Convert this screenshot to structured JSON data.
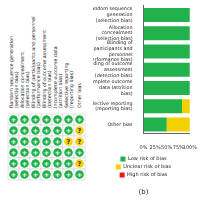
{
  "chart_data": {
    "type": "bar",
    "orientation": "horizontal",
    "stacked": true,
    "subtitle": "(b)",
    "categories": [
      "Random sequence generation (selection bias)",
      "Allocation concealment (selection bias)",
      "Blinding of participants and personnel (performance bias)",
      "Blinding of outcome assessment (detection bias)",
      "Incomplete outcome data (attrition bias)",
      "Selective reporting (reporting bias)",
      "Other bias"
    ],
    "series": [
      {
        "name": "Low risk of bias",
        "color": "#22b14c",
        "values": [
          100,
          100,
          100,
          100,
          100,
          83,
          50
        ]
      },
      {
        "name": "Unclear risk of bias",
        "color": "#f5d000",
        "values": [
          0,
          0,
          0,
          0,
          0,
          17,
          50
        ]
      },
      {
        "name": "High risk of bias",
        "color": "#e31a1c",
        "values": [
          0,
          0,
          0,
          0,
          0,
          0,
          0
        ]
      }
    ],
    "xlim": [
      0,
      100
    ],
    "xticks": [
      {
        "value": 0,
        "label": "0%"
      },
      {
        "value": 25,
        "label": "25%"
      },
      {
        "value": 50,
        "label": "50%"
      },
      {
        "value": 75,
        "label": "75%"
      },
      {
        "value": 100,
        "label": "100%"
      }
    ],
    "grid": false,
    "legend": "bottom"
  },
  "summary_grid": {
    "columns": [
      "Random sequence generation (selection bias)",
      "Allocation concealment (selection bias)",
      "Blinding of participants and personnel (performance bias)",
      "Blinding of outcome assessment (detection bias)",
      "Incomplete outcome data (attrition bias)",
      "Selective reporting (reporting bias)",
      "Other bias"
    ],
    "rows": [
      [
        "+",
        "+",
        "+",
        "+",
        "+",
        "+",
        "+"
      ],
      [
        "+",
        "+",
        "+",
        "+",
        "+",
        "+",
        "?"
      ],
      [
        "+",
        "+",
        "+",
        "+",
        "+",
        "?",
        "?"
      ],
      [
        "+",
        "+",
        "+",
        "+",
        "+",
        "+",
        "+"
      ],
      [
        "+",
        "+",
        "+",
        "+",
        "+",
        "+",
        "?"
      ],
      [
        "+",
        "+",
        "+",
        "+",
        "+",
        "+",
        "+"
      ]
    ]
  }
}
